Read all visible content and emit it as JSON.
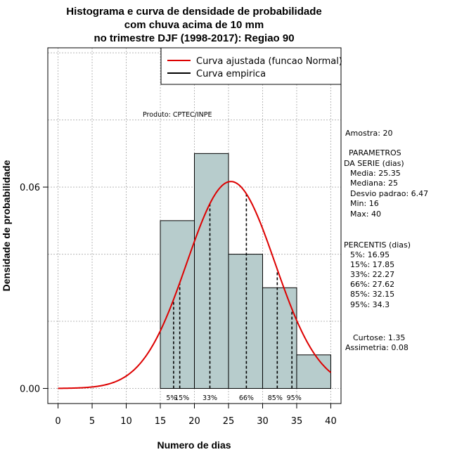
{
  "chart_data": {
    "type": "bar",
    "title_lines": [
      "Histograma e curva de densidade de probabilidade",
      "com chuva acima de 10 mm",
      "no trimestre DJF (1998-2017): Regiao 90"
    ],
    "xlabel": "Numero de dias",
    "ylabel": "Densidade de probabilidade",
    "xlim": [
      -1.5,
      41.5
    ],
    "ylim": [
      -0.0045,
      0.1015
    ],
    "x_ticks": [
      "0",
      "5",
      "10",
      "15",
      "20",
      "25",
      "30",
      "35",
      "40"
    ],
    "y_ticks": [
      "0.00",
      "0.06"
    ],
    "bins": [
      {
        "from": 15,
        "to": 20,
        "density": 0.05
      },
      {
        "from": 20,
        "to": 25,
        "density": 0.07
      },
      {
        "from": 25,
        "to": 30,
        "density": 0.04
      },
      {
        "from": 30,
        "to": 35,
        "density": 0.03
      },
      {
        "from": 35,
        "to": 40,
        "density": 0.01
      }
    ],
    "bar_color": "#b7cccc",
    "curve_color": "#dd0000",
    "normal_fit": {
      "mean": 25.35,
      "sd": 6.47,
      "x_range": [
        0,
        40
      ]
    },
    "percentile_lines": [
      {
        "label": "5%",
        "x": 16.95
      },
      {
        "label": "15%",
        "x": 17.85
      },
      {
        "label": "33%",
        "x": 22.27
      },
      {
        "label": "66%",
        "x": 27.62
      },
      {
        "label": "85%",
        "x": 32.15
      },
      {
        "label": "95%",
        "x": 34.3
      }
    ],
    "legend": [
      {
        "label": "Curva ajustada (funcao Normal)",
        "color": "#dd0000"
      },
      {
        "label": "Curva empirica",
        "color": "#000000"
      }
    ],
    "grid": true,
    "legend_position": "top-right"
  },
  "producer": "Produto: CPTEC/INPE",
  "stats": {
    "sample": "Amostra: 20",
    "params_title_1": "PARAMETROS",
    "params_title_2": "DA SERIE (dias)",
    "media": "Media: 25.35",
    "mediana": "Mediana: 25",
    "desvio": "Desvio padrao: 6.47",
    "min": "Min: 16",
    "max": "Max: 40",
    "percentis_title": "PERCENTIS (dias)",
    "p5": "5%: 16.95",
    "p15": "15%: 17.85",
    "p33": "33%: 22.27",
    "p66": "66%: 27.62",
    "p85": "85%: 32.15",
    "p95": "95%: 34.3",
    "curtose": "Curtose: 1.35",
    "assimetria": "Assimetria: 0.08"
  }
}
